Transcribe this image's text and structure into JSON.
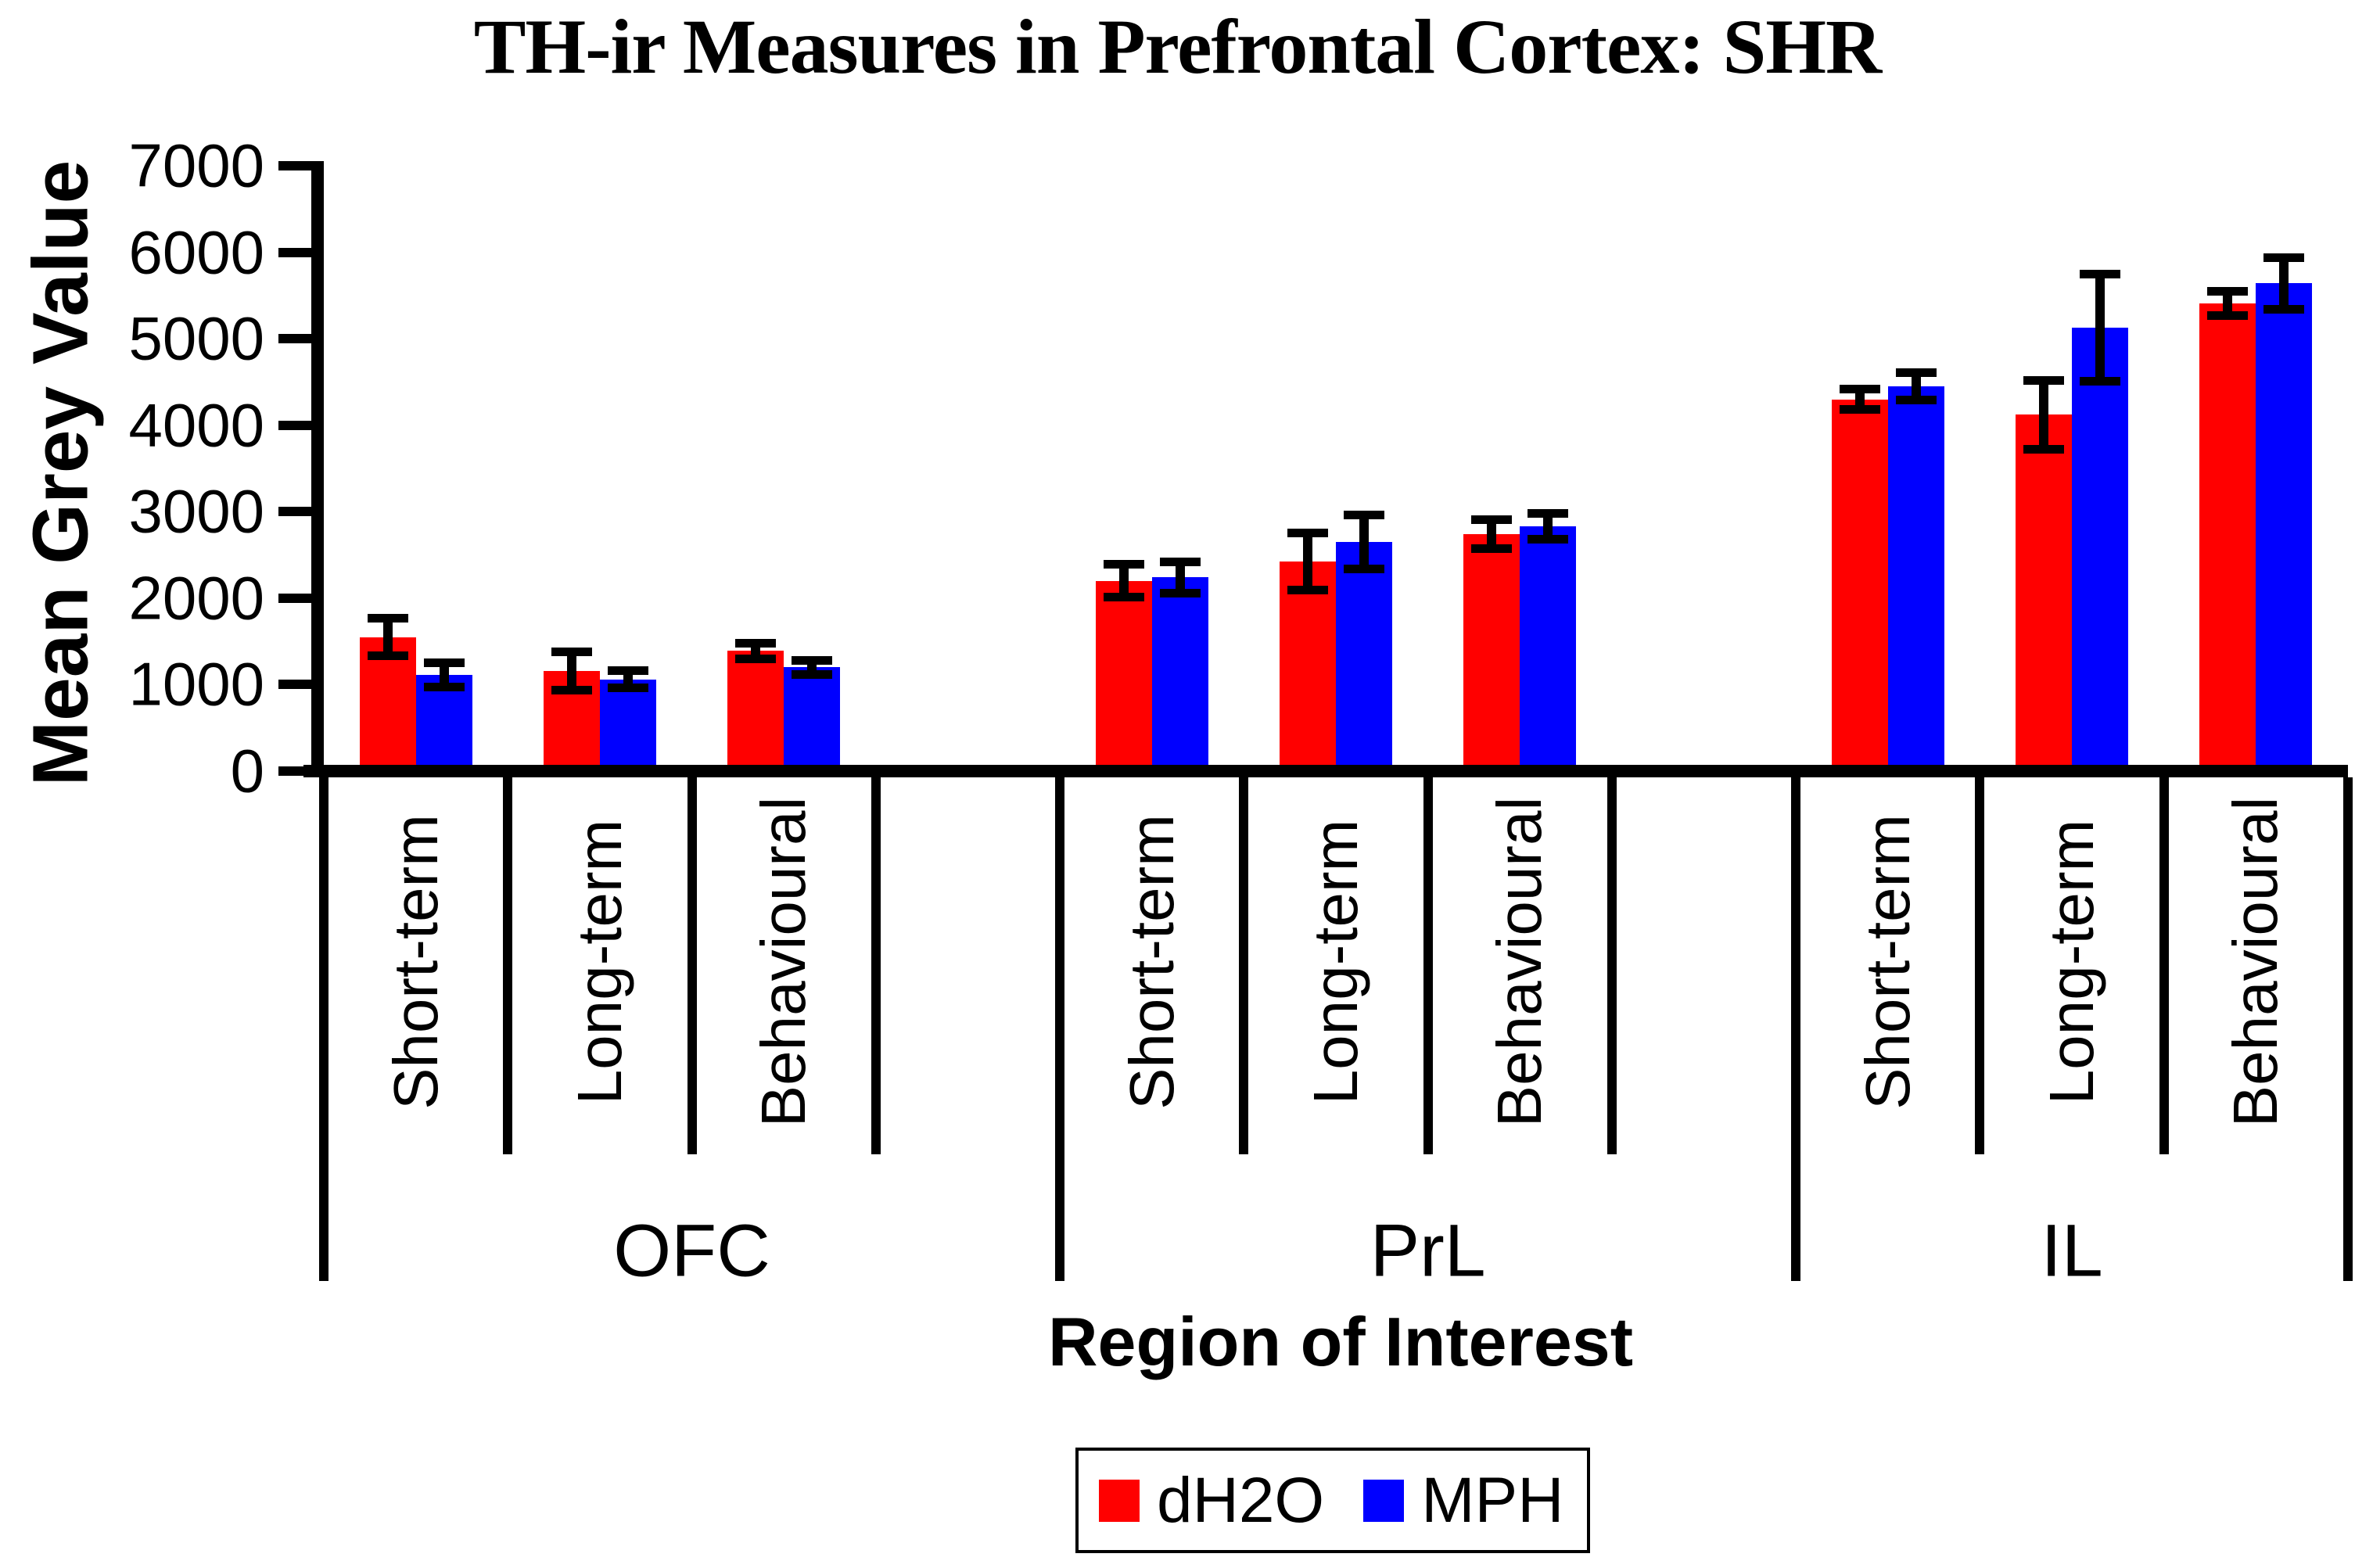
{
  "chart_data": {
    "type": "bar",
    "title": "TH-ir Measures in Prefrontal Cortex: SHR",
    "ylabel": "Mean Grey Value",
    "xlabel": "Region of Interest",
    "ylim": [
      0,
      7000
    ],
    "ytick_step": 1000,
    "yticks": [
      0,
      1000,
      2000,
      3000,
      4000,
      5000,
      6000,
      7000
    ],
    "grid": false,
    "legend_position": "bottom-center",
    "regions": [
      "OFC",
      "PrL",
      "IL"
    ],
    "conditions": [
      "Short-term",
      "Long-term",
      "Behavioural"
    ],
    "series": [
      {
        "name": "dH2O",
        "color": "#ff0000",
        "values": [
          [
            1550,
            1160,
            1390
          ],
          [
            2200,
            2420,
            2740
          ],
          [
            4300,
            4120,
            5410
          ]
        ],
        "errors": [
          [
            220,
            220,
            90
          ],
          [
            190,
            330,
            170
          ],
          [
            120,
            400,
            140
          ]
        ]
      },
      {
        "name": "MPH",
        "color": "#0000ff",
        "values": [
          [
            1110,
            1060,
            1200
          ],
          [
            2240,
            2650,
            2830
          ],
          [
            4450,
            5130,
            5640
          ]
        ],
        "errors": [
          [
            140,
            100,
            80
          ],
          [
            180,
            310,
            150
          ],
          [
            160,
            620,
            300
          ]
        ]
      }
    ],
    "colors": {
      "axis": "#000000",
      "text": "#000000",
      "background": "#ffffff"
    }
  }
}
